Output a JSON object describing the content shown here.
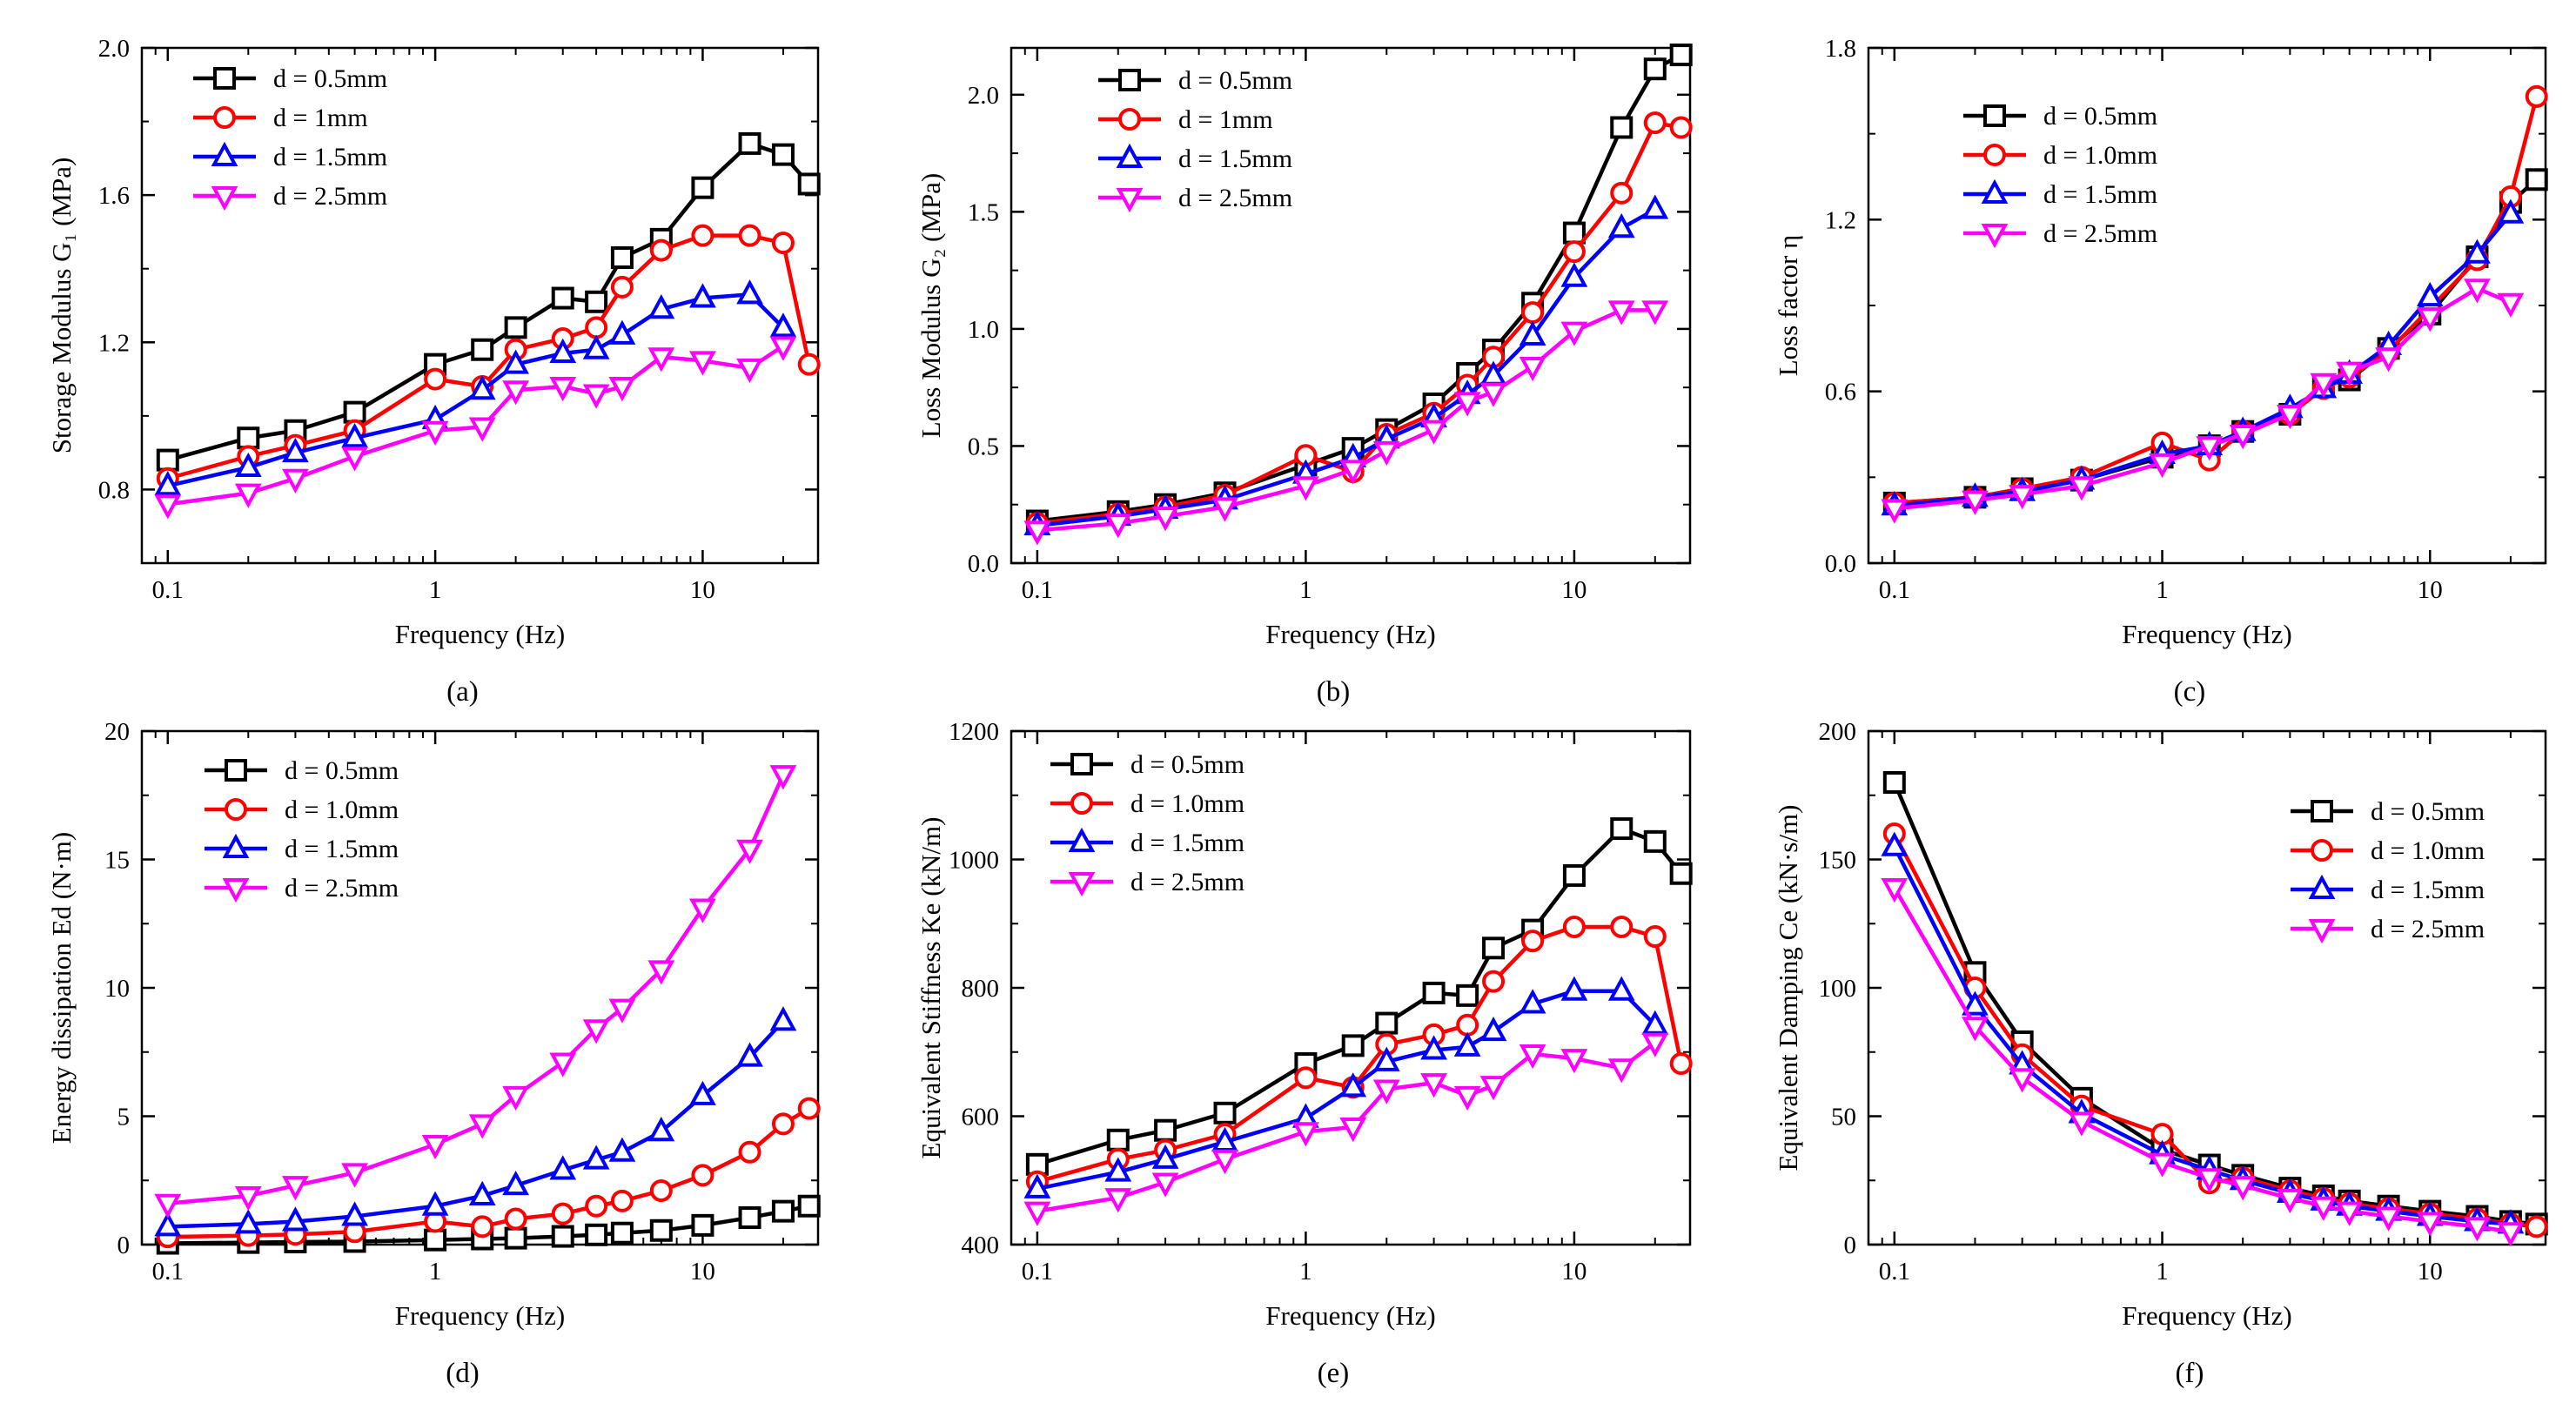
{
  "figure": {
    "x_values": [
      0.1,
      0.2,
      0.3,
      0.5,
      1,
      1.5,
      2,
      3,
      4,
      5,
      7,
      10,
      15,
      20,
      25
    ],
    "series_style": [
      {
        "color": "#000000",
        "marker": "square"
      },
      {
        "color": "#ff0000",
        "marker": "circle"
      },
      {
        "color": "#0000ff",
        "marker": "triangle-up"
      },
      {
        "color": "#ff00ff",
        "marker": "triangle-down"
      }
    ]
  },
  "chart_data": [
    {
      "type": "line",
      "panel_label": "(a)",
      "xlabel": "Frequency (Hz)",
      "ylabel": "Storage Modulus G₁ (MPa)",
      "xscale": "log",
      "xlim": [
        0.08,
        27
      ],
      "ylim": [
        0.6,
        2.0
      ],
      "xticks": [
        0.1,
        1,
        10
      ],
      "xtick_labels": [
        "0.1",
        "1",
        "10"
      ],
      "yticks": [
        0.8,
        1.2,
        1.6,
        2.0
      ],
      "ytick_labels": [
        "0.8",
        "1.2",
        "1.6",
        "2.0"
      ],
      "legend_position": "top-left",
      "series": [
        {
          "name": "d = 0.5mm",
          "values": [
            0.88,
            0.94,
            0.96,
            1.01,
            1.14,
            1.18,
            1.24,
            1.32,
            1.31,
            1.43,
            1.48,
            1.62,
            1.74,
            1.71,
            1.63
          ]
        },
        {
          "name": "d = 1mm",
          "values": [
            0.83,
            0.89,
            0.92,
            0.96,
            1.1,
            1.08,
            1.18,
            1.21,
            1.24,
            1.35,
            1.45,
            1.49,
            1.49,
            1.47,
            1.14
          ]
        },
        {
          "name": "d = 1.5mm",
          "values": [
            0.81,
            0.86,
            0.9,
            0.94,
            0.99,
            1.07,
            1.14,
            1.17,
            1.18,
            1.22,
            1.29,
            1.32,
            1.33,
            1.24,
            null
          ]
        },
        {
          "name": "d = 2.5mm",
          "values": [
            0.76,
            0.79,
            0.83,
            0.89,
            0.96,
            0.97,
            1.07,
            1.08,
            1.06,
            1.08,
            1.16,
            1.15,
            1.13,
            1.19,
            null
          ]
        }
      ]
    },
    {
      "type": "line",
      "panel_label": "(b)",
      "xlabel": "Frequency (Hz)",
      "ylabel": "Loss Modulus G₂ (MPa)",
      "xscale": "log",
      "xlim": [
        0.08,
        27
      ],
      "ylim": [
        0.0,
        2.2
      ],
      "xticks": [
        0.1,
        1,
        10
      ],
      "xtick_labels": [
        "0.1",
        "1",
        "10"
      ],
      "yticks": [
        0.0,
        0.5,
        1.0,
        1.5,
        2.0
      ],
      "ytick_labels": [
        "0.0",
        "0.5",
        "1.0",
        "1.5",
        "2.0"
      ],
      "legend_position": "top-left",
      "series": [
        {
          "name": "d = 0.5mm",
          "values": [
            0.18,
            0.22,
            0.25,
            0.3,
            0.42,
            0.49,
            0.57,
            0.68,
            0.81,
            0.91,
            1.11,
            1.41,
            1.86,
            2.11,
            2.17
          ]
        },
        {
          "name": "d = 1mm",
          "values": [
            0.17,
            0.21,
            0.24,
            0.29,
            0.46,
            0.39,
            0.55,
            0.64,
            0.76,
            0.88,
            1.07,
            1.33,
            1.58,
            1.88,
            1.86
          ]
        },
        {
          "name": "d = 1.5mm",
          "values": [
            0.16,
            0.2,
            0.23,
            0.27,
            0.38,
            0.45,
            0.53,
            0.62,
            0.72,
            0.8,
            0.97,
            1.22,
            1.43,
            1.51,
            null
          ]
        },
        {
          "name": "d = 2.5mm",
          "values": [
            0.14,
            0.17,
            0.2,
            0.24,
            0.33,
            0.4,
            0.48,
            0.57,
            0.69,
            0.73,
            0.84,
            0.99,
            1.08,
            1.08,
            null
          ]
        }
      ]
    },
    {
      "type": "line",
      "panel_label": "(c)",
      "xlabel": "Frequency (Hz)",
      "ylabel": "Loss factor η",
      "xscale": "log",
      "xlim": [
        0.08,
        27
      ],
      "ylim": [
        0.0,
        1.8
      ],
      "xticks": [
        0.1,
        1,
        10
      ],
      "xtick_labels": [
        "0.1",
        "1",
        "10"
      ],
      "yticks": [
        0.0,
        0.6,
        1.2,
        1.8
      ],
      "ytick_labels": [
        "0.0",
        "0.6",
        "1.2",
        "1.8"
      ],
      "legend_position": "top-left",
      "series": [
        {
          "name": "d = 0.5mm",
          "values": [
            0.21,
            0.23,
            0.26,
            0.29,
            0.37,
            0.41,
            0.46,
            0.52,
            0.62,
            0.64,
            0.75,
            0.87,
            1.07,
            1.26,
            1.34
          ]
        },
        {
          "name": "d = 1.0mm",
          "values": [
            0.21,
            0.23,
            0.26,
            0.3,
            0.42,
            0.36,
            0.46,
            0.52,
            0.61,
            0.65,
            0.74,
            0.89,
            1.06,
            1.28,
            1.63
          ]
        },
        {
          "name": "d = 1.5mm",
          "values": [
            0.2,
            0.23,
            0.25,
            0.29,
            0.38,
            0.41,
            0.46,
            0.54,
            0.61,
            0.66,
            0.76,
            0.93,
            1.08,
            1.22,
            null
          ]
        },
        {
          "name": "d = 2.5mm",
          "values": [
            0.19,
            0.22,
            0.24,
            0.27,
            0.35,
            0.41,
            0.45,
            0.52,
            0.63,
            0.67,
            0.72,
            0.86,
            0.96,
            0.91,
            null
          ]
        }
      ]
    },
    {
      "type": "line",
      "panel_label": "(d)",
      "xlabel": "Frequency (Hz)",
      "ylabel": "Energy dissipation Ed (N·m)",
      "xscale": "log",
      "xlim": [
        0.08,
        27
      ],
      "ylim": [
        0,
        20
      ],
      "xticks": [
        0.1,
        1,
        10
      ],
      "xtick_labels": [
        "0.1",
        "1",
        "10"
      ],
      "yticks": [
        0,
        5,
        10,
        15,
        20
      ],
      "ytick_labels": [
        "0",
        "5",
        "10",
        "15",
        "20"
      ],
      "legend_position": "top-left",
      "series": [
        {
          "name": "d = 0.5mm",
          "values": [
            0.05,
            0.08,
            0.1,
            0.12,
            0.18,
            0.22,
            0.25,
            0.32,
            0.38,
            0.45,
            0.55,
            0.75,
            1.05,
            1.3,
            1.5
          ]
        },
        {
          "name": "d = 1.0mm",
          "values": [
            0.3,
            0.35,
            0.4,
            0.5,
            0.9,
            0.7,
            1.0,
            1.2,
            1.5,
            1.7,
            2.1,
            2.7,
            3.6,
            4.7,
            5.3
          ]
        },
        {
          "name": "d = 1.5mm",
          "values": [
            0.7,
            0.8,
            0.9,
            1.1,
            1.5,
            1.9,
            2.3,
            2.9,
            3.3,
            3.6,
            4.4,
            5.8,
            7.3,
            8.7,
            null
          ]
        },
        {
          "name": "d = 2.5mm",
          "values": [
            1.6,
            1.9,
            2.3,
            2.8,
            3.9,
            4.7,
            5.8,
            7.1,
            8.4,
            9.2,
            10.7,
            13.1,
            15.4,
            18.3,
            null
          ]
        }
      ]
    },
    {
      "type": "line",
      "panel_label": "(e)",
      "xlabel": "Frequency (Hz)",
      "ylabel": "Equivalent Stiffness Ke (kN/m)",
      "xscale": "log",
      "xlim": [
        0.08,
        27
      ],
      "ylim": [
        400,
        1200
      ],
      "xticks": [
        0.1,
        1,
        10
      ],
      "xtick_labels": [
        "0.1",
        "1",
        "10"
      ],
      "yticks": [
        400,
        600,
        800,
        1000,
        1200
      ],
      "ytick_labels": [
        "400",
        "600",
        "800",
        "1000",
        "1200"
      ],
      "legend_position": "top-left",
      "series": [
        {
          "name": "d = 0.5mm",
          "values": [
            525,
            563,
            578,
            605,
            682,
            710,
            745,
            792,
            788,
            862,
            890,
            975,
            1048,
            1028,
            978
          ]
        },
        {
          "name": "d = 1.0mm",
          "values": [
            498,
            533,
            547,
            572,
            660,
            645,
            712,
            727,
            742,
            810,
            873,
            895,
            895,
            880,
            682
          ]
        },
        {
          "name": "d = 1.5mm",
          "values": [
            487,
            513,
            533,
            560,
            597,
            645,
            685,
            703,
            708,
            732,
            775,
            795,
            795,
            742,
            null
          ]
        },
        {
          "name": "d = 2.5mm",
          "values": [
            452,
            473,
            497,
            533,
            576,
            583,
            642,
            652,
            632,
            648,
            697,
            690,
            675,
            715,
            null
          ]
        }
      ]
    },
    {
      "type": "line",
      "panel_label": "(f)",
      "xlabel": "Frequency (Hz)",
      "ylabel": "Equivalent Damping Ce (kN·s/m)",
      "xscale": "log",
      "xlim": [
        0.08,
        27
      ],
      "ylim": [
        0,
        200
      ],
      "xticks": [
        0.1,
        1,
        10
      ],
      "xtick_labels": [
        "0.1",
        "1",
        "10"
      ],
      "yticks": [
        0,
        50,
        100,
        150,
        200
      ],
      "ytick_labels": [
        "0",
        "50",
        "100",
        "150",
        "200"
      ],
      "legend_position": "top-right",
      "series": [
        {
          "name": "d = 0.5mm",
          "values": [
            180,
            106,
            79,
            57,
            37,
            31,
            27,
            22,
            19,
            17,
            15,
            13,
            11,
            9,
            8
          ]
        },
        {
          "name": "d = 1.0mm",
          "values": [
            160,
            100,
            74,
            54,
            43,
            24,
            26,
            21,
            18,
            16,
            14,
            12,
            10,
            8,
            7
          ]
        },
        {
          "name": "d = 1.5mm",
          "values": [
            155,
            93,
            70,
            51,
            35,
            29,
            25,
            20,
            17,
            15,
            13,
            11,
            9,
            8,
            null
          ]
        },
        {
          "name": "d = 2.5mm",
          "values": [
            139,
            85,
            65,
            48,
            32,
            26,
            23,
            18,
            15,
            13,
            11,
            9,
            7,
            5,
            null
          ]
        }
      ]
    }
  ]
}
